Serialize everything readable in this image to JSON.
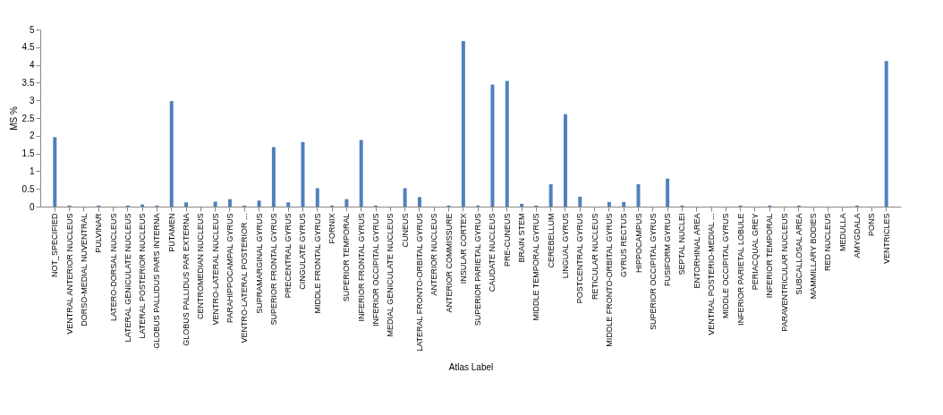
{
  "chart_data": {
    "type": "bar",
    "xlabel": "Atlas Label",
    "ylabel": "MS %",
    "categories": [
      "NOT_SPECIFIED",
      "VENTRAL  ANTERIOR  NUCLEUS",
      "DORSO-MEDIAL NUVENTRAL",
      "PULVINAR",
      "LATERO-DORSAL NUCLEUS",
      "LATERAL GENICULATE  NUCLEUS",
      "LATERAL POSTERIOR NUCLEUS",
      "GLOBUS PALLIDUS PARS INTERNA",
      "PUTAMEN",
      "GLOBUS PALLIDUS PAR EXTERNA",
      "CENTROMEDIAN  NUCLEUS",
      "VENTRO-LATERAL NUCLEUS",
      "PARAHIPPOCAMPAL GYRUS",
      "VENTRO-LATERAL POSTERIOR ...",
      "SUPRAMARGINAL  GYRUS",
      "SUPERIOR FRONTAL  GYRUS",
      "PRECENTRAL  GYRUS",
      "CINGULATE  GYRUS",
      "MIDDLE FRONTAL  GYRUS",
      "FORNIX",
      "SUPERIOR TEMPORAL",
      "INFERIOR FRONTAL  GYRUS",
      "INFERIOR OCCIPITAL  GYRUS",
      "MEDIAL GENICULATE  NUCLEUS",
      "CUNEUS",
      "LATERAL FRONTO-ORBITAL  GYRUS",
      "ANTERIOR NUCLEUS",
      "ANTERIOR COMMISSURE",
      "INSULAR CORTEX",
      "SUPERIOR PARIETAL GYRUS",
      "CAUDATE NUCLEUS",
      "PRE-CUNEUS",
      "BRAIN STEM",
      "MIDDLE TEMPORAL  GYRUS",
      "CEREBELLUM",
      "LINGUAL  GYRUS",
      "POSTCENTRAL  GYRUS",
      "RETICULAR NUCLEUS",
      "MIDDLE FRONTO-ORBITAL  GYRUS",
      "GYRUS RECTUS",
      "HIPPOCAMPUS",
      "SUPERIOR OCCIPITAL GYRUS",
      "FUSIFORM  GYRUS",
      "SEPTAL NUCLEI",
      "ENTORHINAL  AREA",
      "VENTRAL  POSTERIO-MEDIAL ...",
      "MIDDLE OCCIPITAL  GYRUS",
      "INFERIOR PARIETAL LOBULE",
      "PERIACQUAL GREY",
      "INFERIOR  TEMPORAL",
      "PARAVENTRICULAR  NUCLEUS",
      "SUBCALLOSAL AREA",
      "MAMMILLARY BODIES",
      "RED NUCLEUS",
      "MEDULLA",
      "AMYGDALA",
      "PONS",
      "VENTRICLES"
    ],
    "values": [
      1.96,
      0.03,
      0,
      0.03,
      0,
      0.03,
      0.06,
      0.03,
      2.98,
      0.12,
      0,
      0.14,
      0.21,
      0.03,
      0.17,
      1.68,
      0.12,
      1.82,
      0.52,
      0.03,
      0.21,
      1.88,
      0.03,
      0,
      0.52,
      0.27,
      0,
      0.03,
      4.67,
      0.03,
      3.45,
      3.55,
      0.08,
      0.03,
      0.63,
      2.61,
      0.28,
      0,
      0.13,
      0.13,
      0.63,
      0,
      0.79,
      0.03,
      0,
      0,
      0,
      0.03,
      0,
      0.03,
      0,
      0.03,
      0,
      0,
      0,
      0.03,
      0,
      4.11
    ],
    "color": "#4f81bd",
    "ylim": [
      0,
      5
    ],
    "yticks": [
      0,
      0.5,
      1,
      1.5,
      2,
      2.5,
      3,
      3.5,
      4,
      4.5,
      5
    ],
    "grid": false
  }
}
